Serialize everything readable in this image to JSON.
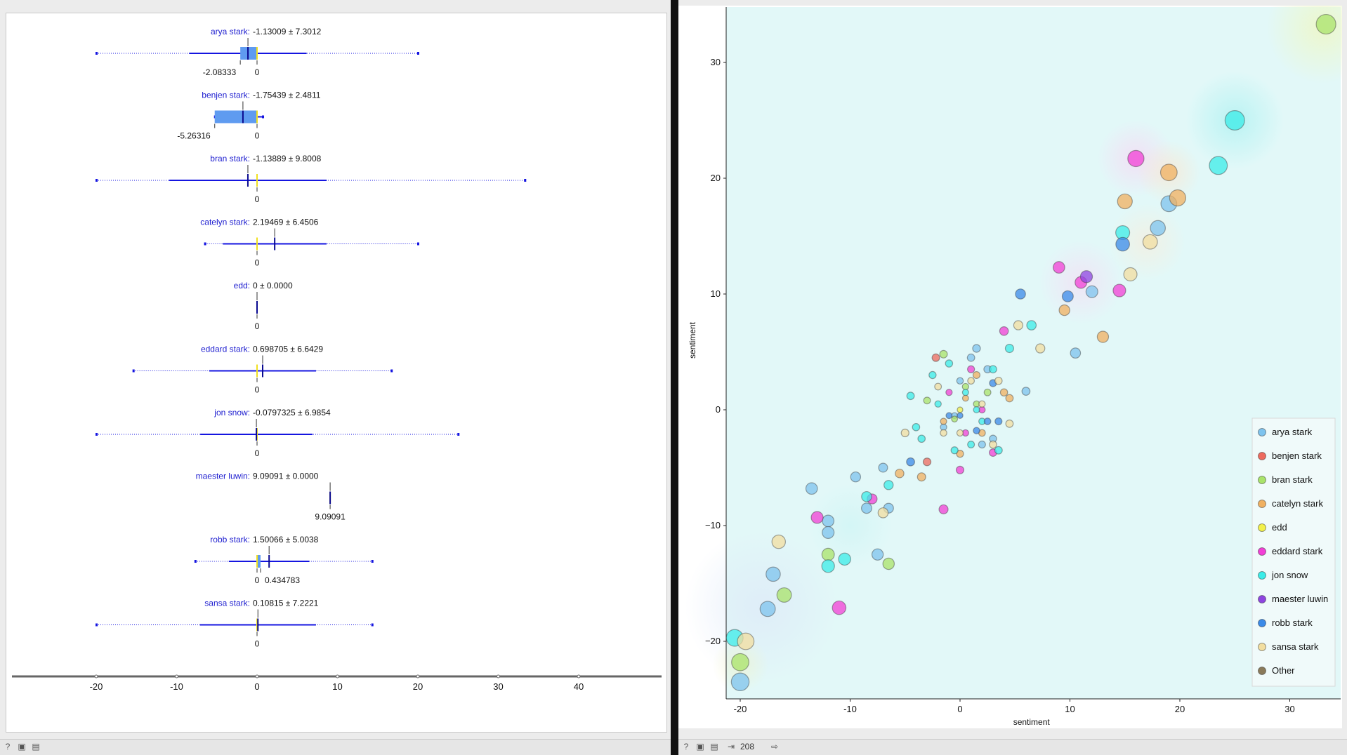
{
  "box_plot": {
    "axis_ticks": [
      "-20",
      "-10",
      "0",
      "10",
      "20",
      "30",
      "40"
    ],
    "rows": [
      {
        "name": "arya stark",
        "stats": "-1.13009 ± 7.3012",
        "labels": [
          "-2.08333",
          "0"
        ]
      },
      {
        "name": "benjen stark",
        "stats": "-1.75439 ± 2.4811",
        "labels": [
          "-5.26316",
          "0"
        ]
      },
      {
        "name": "bran stark",
        "stats": "-1.13889 ± 9.8008",
        "labels": [
          "0"
        ]
      },
      {
        "name": "catelyn stark",
        "stats": "2.19469 ± 6.4506",
        "labels": [
          "0"
        ]
      },
      {
        "name": "edd",
        "stats": "0 ± 0.0000",
        "labels": [
          "0"
        ]
      },
      {
        "name": "eddard stark",
        "stats": "0.698705 ± 6.6429",
        "labels": [
          "0"
        ]
      },
      {
        "name": "jon snow",
        "stats": "-0.0797325 ± 6.9854",
        "labels": [
          "0"
        ]
      },
      {
        "name": "maester luwin",
        "stats": "9.09091 ± 0.0000",
        "labels": [
          "9.09091"
        ]
      },
      {
        "name": "robb stark",
        "stats": "1.50066 ± 5.0038",
        "labels": [
          "0",
          "0.434783"
        ]
      },
      {
        "name": "sansa stark",
        "stats": "0.10815 ± 7.2221",
        "labels": [
          "0"
        ]
      }
    ]
  },
  "chart_data": [
    {
      "type": "box",
      "x_range": [
        -30,
        50
      ],
      "series": [
        {
          "name": "arya stark",
          "mean": -1.13009,
          "sd": 7.3012,
          "median": 0,
          "q1": -2.08333,
          "q3": 0,
          "min": -20,
          "max": 20
        },
        {
          "name": "benjen stark",
          "mean": -1.75439,
          "sd": 2.4811,
          "median": 0,
          "q1": -5.26316,
          "q3": 0,
          "min": -5.26316,
          "max": 0.7
        },
        {
          "name": "bran stark",
          "mean": -1.13889,
          "sd": 9.8008,
          "median": 0,
          "q1": 0,
          "q3": 0,
          "min": -20,
          "max": 33.3
        },
        {
          "name": "catelyn stark",
          "mean": 2.19469,
          "sd": 6.4506,
          "median": 0,
          "q1": 0,
          "q3": 0,
          "min": -6.5,
          "max": 20
        },
        {
          "name": "edd",
          "mean": 0,
          "sd": 0,
          "median": 0,
          "q1": 0,
          "q3": 0,
          "min": 0,
          "max": 0
        },
        {
          "name": "eddard stark",
          "mean": 0.698705,
          "sd": 6.6429,
          "median": 0,
          "q1": 0,
          "q3": 0,
          "min": -15.4,
          "max": 16.7
        },
        {
          "name": "jon snow",
          "mean": -0.0797325,
          "sd": 6.9854,
          "median": 0,
          "q1": 0,
          "q3": 0,
          "min": -20,
          "max": 25
        },
        {
          "name": "maester luwin",
          "mean": 9.09091,
          "sd": 0,
          "median": 9.09091,
          "q1": 9.09091,
          "q3": 9.09091,
          "min": 9.09091,
          "max": 9.09091
        },
        {
          "name": "robb stark",
          "mean": 1.50066,
          "sd": 5.0038,
          "median": 0,
          "q1": 0,
          "q3": 0.434783,
          "min": -7.7,
          "max": 14.3
        },
        {
          "name": "sansa stark",
          "mean": 0.10815,
          "sd": 7.2221,
          "median": 0,
          "q1": 0,
          "q3": 0,
          "min": -20,
          "max": 14.3
        }
      ]
    },
    {
      "type": "scatter",
      "xlabel": "sentiment",
      "ylabel": "sentiment",
      "xlim": [
        -22,
        34
      ],
      "ylim": [
        -25,
        35
      ],
      "x_ticks": [
        -20,
        -10,
        0,
        10,
        20,
        30
      ],
      "y_ticks": [
        -20,
        -10,
        0,
        10,
        20,
        30
      ],
      "legend_position": "bottom-right",
      "series": [
        {
          "name": "arya stark",
          "color": "#7ec3ee",
          "points": [
            [
              -20,
              -23.5
            ],
            [
              -17.5,
              -17.2
            ],
            [
              -17,
              -14.2
            ],
            [
              -13.5,
              -6.8
            ],
            [
              -12,
              -9.6
            ],
            [
              -12,
              -10.6
            ],
            [
              -9.5,
              -5.8
            ],
            [
              -7.5,
              -12.5
            ],
            [
              -7,
              -5
            ],
            [
              -6.5,
              -8.5
            ],
            [
              -8.5,
              -8.5
            ],
            [
              -1.5,
              -1.5
            ],
            [
              -0.5,
              -0.5
            ],
            [
              0,
              2.5
            ],
            [
              1,
              4.5
            ],
            [
              1.5,
              5.3
            ],
            [
              2,
              -3
            ],
            [
              2.5,
              3.5
            ],
            [
              3,
              -2.5
            ],
            [
              6,
              1.6
            ],
            [
              10.5,
              4.9
            ],
            [
              12,
              10.2
            ],
            [
              18,
              15.7
            ],
            [
              19,
              17.8
            ]
          ]
        },
        {
          "name": "benjen stark",
          "color": "#ee6a5e",
          "points": [
            [
              -2.2,
              4.5
            ],
            [
              -3,
              -4.5
            ]
          ]
        },
        {
          "name": "bran stark",
          "color": "#a9e36a",
          "points": [
            [
              -20,
              -21.8
            ],
            [
              -16,
              -16
            ],
            [
              -12,
              -12.5
            ],
            [
              -6.5,
              -13.3
            ],
            [
              -3,
              0.8
            ],
            [
              -1.5,
              4.8
            ],
            [
              -0.5,
              -0.8
            ],
            [
              0.5,
              2
            ],
            [
              1.5,
              0.5
            ],
            [
              2.5,
              1.5
            ],
            [
              33.3,
              33.3
            ]
          ]
        },
        {
          "name": "catelyn stark",
          "color": "#f0b060",
          "points": [
            [
              -5.5,
              -5.5
            ],
            [
              -3.5,
              -5.8
            ],
            [
              -1.5,
              -1
            ],
            [
              0,
              -3.8
            ],
            [
              0.5,
              1
            ],
            [
              1.5,
              3
            ],
            [
              2,
              -2
            ],
            [
              4,
              1.5
            ],
            [
              4.5,
              1
            ],
            [
              9.5,
              8.6
            ],
            [
              13,
              6.3
            ],
            [
              15,
              18
            ],
            [
              19,
              20.5
            ],
            [
              19.8,
              18.3
            ]
          ]
        },
        {
          "name": "edd",
          "color": "#f2f04a",
          "points": [
            [
              0,
              0
            ]
          ]
        },
        {
          "name": "eddard stark",
          "color": "#f23fd6",
          "points": [
            [
              -13,
              -9.3
            ],
            [
              -11,
              -17.1
            ],
            [
              -8,
              -7.7
            ],
            [
              -1.5,
              -8.6
            ],
            [
              -1,
              1.5
            ],
            [
              0,
              -5.2
            ],
            [
              0.5,
              -2
            ],
            [
              1,
              3.5
            ],
            [
              2,
              0
            ],
            [
              3,
              -3.7
            ],
            [
              4,
              6.8
            ],
            [
              9,
              12.3
            ],
            [
              11,
              11
            ],
            [
              14.5,
              10.3
            ],
            [
              16,
              21.7
            ]
          ]
        },
        {
          "name": "jon snow",
          "color": "#3bece8",
          "points": [
            [
              -20.5,
              -19.7
            ],
            [
              -12,
              -13.5
            ],
            [
              -10.5,
              -12.9
            ],
            [
              -8.5,
              -7.5
            ],
            [
              -6.5,
              -6.5
            ],
            [
              -4.5,
              1.2
            ],
            [
              -4,
              -1.5
            ],
            [
              -3.5,
              -2.5
            ],
            [
              -2.5,
              3
            ],
            [
              -2,
              0.5
            ],
            [
              -1,
              4
            ],
            [
              -0.5,
              -3.5
            ],
            [
              0.5,
              1.5
            ],
            [
              1,
              -3
            ],
            [
              1.5,
              0
            ],
            [
              2,
              -1
            ],
            [
              3,
              3.5
            ],
            [
              3.5,
              -3.5
            ],
            [
              4.5,
              5.3
            ],
            [
              6.5,
              7.3
            ],
            [
              14.8,
              15.3
            ],
            [
              23.5,
              21.1
            ],
            [
              25,
              25
            ]
          ]
        },
        {
          "name": "maester luwin",
          "color": "#8e45e0",
          "points": [
            [
              11.5,
              11.5
            ]
          ]
        },
        {
          "name": "robb stark",
          "color": "#3a8ae8",
          "points": [
            [
              -4.5,
              -4.5
            ],
            [
              -1,
              -0.5
            ],
            [
              0,
              -0.5
            ],
            [
              1.5,
              -1.8
            ],
            [
              2.5,
              -1
            ],
            [
              3.5,
              -1
            ],
            [
              3,
              2.3
            ],
            [
              5.5,
              10
            ],
            [
              9.8,
              9.8
            ],
            [
              14.8,
              14.3
            ]
          ]
        },
        {
          "name": "sansa stark",
          "color": "#f2dea0",
          "points": [
            [
              -19.5,
              -20
            ],
            [
              -16.5,
              -11.4
            ],
            [
              -7,
              -8.9
            ],
            [
              -5,
              -2
            ],
            [
              -2,
              2
            ],
            [
              -1.5,
              -2
            ],
            [
              0,
              -2
            ],
            [
              1,
              2.5
            ],
            [
              2,
              0.5
            ],
            [
              3,
              -3
            ],
            [
              3.5,
              2.5
            ],
            [
              4.5,
              -1.2
            ],
            [
              5.3,
              7.3
            ],
            [
              7.3,
              5.3
            ],
            [
              15.5,
              11.7
            ],
            [
              17.3,
              14.5
            ]
          ]
        },
        {
          "name": "Other",
          "color": "#8a7a5a",
          "points": []
        }
      ]
    }
  ],
  "status": {
    "count": "208"
  }
}
